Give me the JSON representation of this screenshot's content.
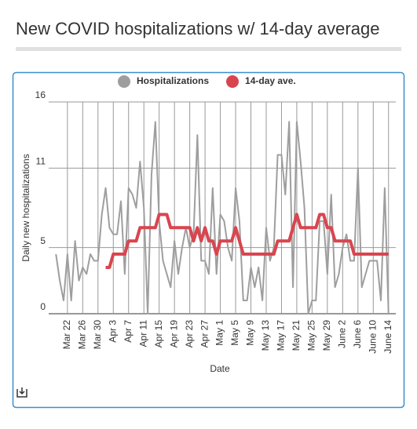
{
  "chart_data": {
    "type": "line",
    "title": "New COVID hospitalizations w/ 14-day average",
    "x_label": "Date",
    "y_label": "Daily new hospitalizations",
    "categories": [
      null,
      null,
      null,
      "Mar 22",
      null,
      null,
      null,
      "Mar 26",
      null,
      null,
      null,
      "Mar 30",
      null,
      null,
      null,
      "Apr 3",
      null,
      null,
      null,
      "Apr 7",
      null,
      null,
      null,
      "Apr 11",
      null,
      null,
      null,
      "Apr 15",
      null,
      null,
      null,
      "Apr 19",
      null,
      null,
      null,
      "Apr 23",
      null,
      null,
      null,
      "Apr 27",
      null,
      null,
      null,
      "May 1",
      null,
      null,
      null,
      "May 5",
      null,
      null,
      null,
      "May 9",
      null,
      null,
      null,
      "May 13",
      null,
      null,
      null,
      "May 17",
      null,
      null,
      null,
      "May 21",
      null,
      null,
      null,
      "May 25",
      null,
      null,
      null,
      "May 29",
      null,
      null,
      null,
      "June 2",
      null,
      null,
      null,
      "June 6",
      null,
      null,
      null,
      "June 10",
      null,
      null,
      null,
      "June 14"
    ],
    "series": [
      {
        "name": "Hospitalizations",
        "color": "#9e9e9e",
        "values": [
          4.5,
          2.5,
          1,
          4.5,
          1,
          5.5,
          2.5,
          3.5,
          3,
          4.5,
          4,
          4,
          7.5,
          9.5,
          6.5,
          6,
          6,
          8.5,
          3,
          9.5,
          9,
          8,
          11.5,
          8,
          0,
          10.5,
          14.5,
          7,
          4,
          3,
          2,
          5.5,
          3,
          5,
          6.5,
          5,
          6,
          13.5,
          4,
          4,
          3,
          9.5,
          3,
          7.5,
          7,
          5,
          4,
          9.5,
          7,
          1,
          1,
          3.5,
          2,
          3.5,
          1,
          6.5,
          4,
          5,
          12,
          12,
          9,
          14.5,
          2,
          14.5,
          11.5,
          8,
          0,
          1,
          1,
          7,
          7,
          3,
          9,
          2,
          3,
          5,
          6,
          4,
          4,
          11,
          2,
          3,
          4,
          4,
          4,
          1,
          9.5,
          0
        ]
      },
      {
        "name": "14-day ave.",
        "color": "#d9454f",
        "values": [
          null,
          null,
          null,
          null,
          null,
          null,
          null,
          null,
          null,
          null,
          null,
          null,
          null,
          3.5,
          3.5,
          4.5,
          4.5,
          4.5,
          4.5,
          5.5,
          5.5,
          5.5,
          6.5,
          6.5,
          6.5,
          6.5,
          6.5,
          7.5,
          7.5,
          7.5,
          6.5,
          6.5,
          6.5,
          6.5,
          6.5,
          6.5,
          5.5,
          6.5,
          5.5,
          6.5,
          5.5,
          5.5,
          4.5,
          5.5,
          5.5,
          5.5,
          5.5,
          6.5,
          5.5,
          4.5,
          4.5,
          4.5,
          4.5,
          4.5,
          4.5,
          4.5,
          4.5,
          4.5,
          5.5,
          5.5,
          5.5,
          5.5,
          6.5,
          7.5,
          6.5,
          6.5,
          6.5,
          6.5,
          6.5,
          7.5,
          7.5,
          6.5,
          6.5,
          5.5,
          5.5,
          5.5,
          5.5,
          5.5,
          4.5,
          4.5,
          4.5,
          4.5,
          4.5,
          4.5,
          4.5,
          4.5,
          4.5,
          4.5
        ]
      }
    ],
    "ylim": [
      0,
      16
    ],
    "yticks": [
      0,
      5,
      11,
      16
    ],
    "grid": true
  }
}
